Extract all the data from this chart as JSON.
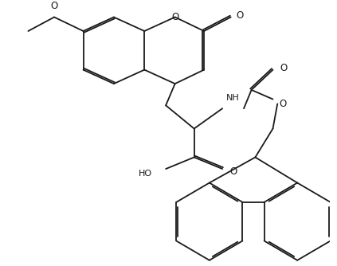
{
  "bg_color": "#ffffff",
  "line_color": "#1a1a1a",
  "line_width": 1.3,
  "figsize": [
    4.23,
    3.34
  ],
  "dpi": 100,
  "xlim": [
    0,
    10
  ],
  "ylim": [
    0,
    8
  ]
}
